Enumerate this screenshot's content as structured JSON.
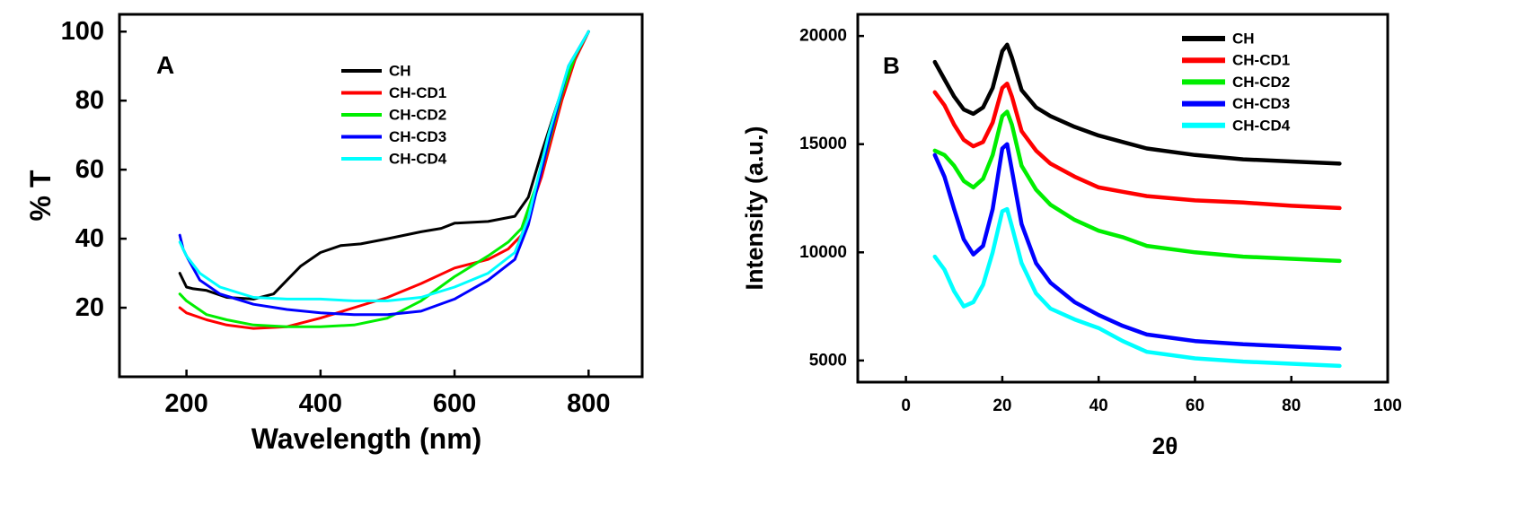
{
  "chart_data": [
    {
      "type": "line",
      "panel_label": "A",
      "xlabel": "Wavelength (nm)",
      "ylabel": "% T",
      "xlim": [
        100,
        880
      ],
      "ylim": [
        0,
        105
      ],
      "xticks": [
        "200",
        "400",
        "600",
        "800"
      ],
      "yticks": [
        "20",
        "40",
        "60",
        "80",
        "100"
      ],
      "grid": false,
      "legend_position": "top-center",
      "series": [
        {
          "name": "CH",
          "color": "#000000",
          "x": [
            190,
            200,
            210,
            230,
            260,
            300,
            330,
            350,
            370,
            400,
            430,
            460,
            500,
            550,
            580,
            600,
            650,
            690,
            710,
            730,
            760,
            780,
            800
          ],
          "y": [
            30,
            26,
            25.5,
            25,
            23,
            22.5,
            24,
            28,
            32,
            36,
            38,
            38.5,
            40,
            42,
            43,
            44.5,
            45,
            46.5,
            52,
            65,
            83,
            92,
            100
          ]
        },
        {
          "name": "CH-CD1",
          "color": "#ff0000",
          "x": [
            190,
            200,
            230,
            260,
            300,
            350,
            400,
            450,
            500,
            550,
            600,
            650,
            680,
            700,
            730,
            760,
            780,
            800
          ],
          "y": [
            20,
            18.5,
            16.5,
            15,
            14,
            14.5,
            17,
            20,
            23,
            27,
            31.5,
            34,
            37,
            41,
            58,
            80,
            92,
            100
          ]
        },
        {
          "name": "CH-CD2",
          "color": "#00ee00",
          "x": [
            190,
            200,
            230,
            260,
            300,
            350,
            400,
            450,
            500,
            550,
            600,
            650,
            680,
            700,
            730,
            760,
            780,
            800
          ],
          "y": [
            24,
            22,
            18,
            16.5,
            15,
            14.5,
            14.5,
            15,
            17,
            22,
            29,
            35,
            39,
            43,
            60,
            82,
            93,
            100
          ]
        },
        {
          "name": "CH-CD3",
          "color": "#0000ff",
          "x": [
            190,
            195,
            200,
            220,
            250,
            300,
            350,
            400,
            450,
            500,
            550,
            600,
            650,
            690,
            710,
            740,
            770,
            800
          ],
          "y": [
            41,
            37,
            35,
            28,
            24,
            21,
            19.5,
            18.5,
            18,
            18,
            19,
            22.5,
            28,
            34,
            44,
            68,
            90,
            100
          ]
        },
        {
          "name": "CH-CD4",
          "color": "#00ffff",
          "x": [
            190,
            200,
            220,
            250,
            300,
            350,
            400,
            450,
            500,
            550,
            600,
            650,
            690,
            710,
            740,
            770,
            800
          ],
          "y": [
            39,
            35,
            30,
            26,
            23,
            22.5,
            22.5,
            22,
            22,
            23,
            26,
            30,
            36,
            46,
            70,
            90,
            100
          ]
        }
      ]
    },
    {
      "type": "line",
      "panel_label": "B",
      "xlabel": "2θ",
      "ylabel": "Intensity (a.u.)",
      "xlim": [
        -10,
        100
      ],
      "ylim": [
        4000,
        21000
      ],
      "xticks": [
        "0",
        "20",
        "40",
        "60",
        "80",
        "100"
      ],
      "yticks": [
        "5000",
        "10000",
        "15000",
        "20000"
      ],
      "grid": false,
      "legend_position": "top-right",
      "series": [
        {
          "name": "CH",
          "color": "#000000",
          "x": [
            6,
            8,
            10,
            12,
            14,
            16,
            18,
            20,
            21,
            22,
            24,
            27,
            30,
            35,
            40,
            45,
            50,
            60,
            70,
            80,
            90
          ],
          "y": [
            18800,
            18000,
            17200,
            16600,
            16400,
            16700,
            17600,
            19300,
            19600,
            19000,
            17500,
            16700,
            16300,
            15800,
            15400,
            15100,
            14800,
            14500,
            14300,
            14200,
            14100
          ]
        },
        {
          "name": "CH-CD1",
          "color": "#ff0000",
          "x": [
            6,
            8,
            10,
            12,
            14,
            16,
            18,
            20,
            21,
            22,
            24,
            27,
            30,
            35,
            40,
            45,
            50,
            60,
            70,
            80,
            90
          ],
          "y": [
            17400,
            16800,
            15900,
            15200,
            14900,
            15100,
            16000,
            17600,
            17800,
            17200,
            15600,
            14700,
            14100,
            13500,
            13000,
            12800,
            12600,
            12400,
            12300,
            12150,
            12050
          ]
        },
        {
          "name": "CH-CD2",
          "color": "#00ee00",
          "x": [
            6,
            8,
            10,
            12,
            14,
            16,
            18,
            20,
            21,
            22,
            24,
            27,
            30,
            35,
            40,
            45,
            50,
            60,
            70,
            80,
            90
          ],
          "y": [
            14700,
            14500,
            14000,
            13300,
            13000,
            13400,
            14500,
            16300,
            16500,
            15900,
            14000,
            12900,
            12200,
            11500,
            11000,
            10700,
            10300,
            10000,
            9800,
            9700,
            9600
          ]
        },
        {
          "name": "CH-CD3",
          "color": "#0000ff",
          "x": [
            6,
            8,
            10,
            12,
            14,
            16,
            18,
            20,
            21,
            22,
            24,
            27,
            30,
            35,
            40,
            45,
            50,
            60,
            70,
            80,
            90
          ],
          "y": [
            14500,
            13500,
            12000,
            10600,
            9900,
            10300,
            12000,
            14800,
            15000,
            13800,
            11300,
            9500,
            8600,
            7700,
            7100,
            6600,
            6200,
            5900,
            5750,
            5650,
            5550
          ]
        },
        {
          "name": "CH-CD4",
          "color": "#00ffff",
          "x": [
            6,
            8,
            10,
            12,
            14,
            16,
            18,
            20,
            21,
            22,
            24,
            27,
            30,
            35,
            40,
            45,
            50,
            60,
            70,
            80,
            90
          ],
          "y": [
            9800,
            9200,
            8200,
            7500,
            7700,
            8500,
            10000,
            11900,
            12000,
            11200,
            9500,
            8100,
            7400,
            6900,
            6500,
            5900,
            5400,
            5100,
            4950,
            4850,
            4750
          ]
        }
      ]
    }
  ]
}
